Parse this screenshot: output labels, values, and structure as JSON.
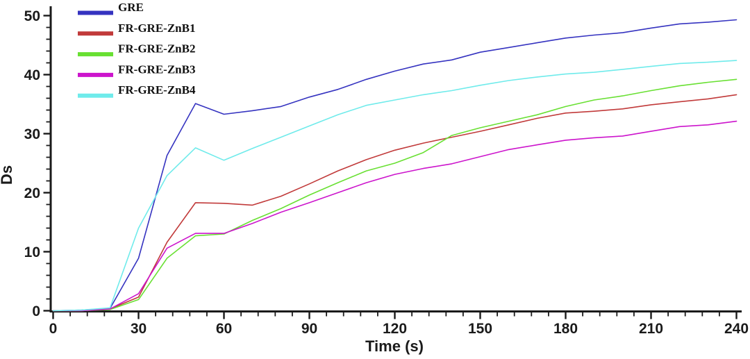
{
  "chart_data": {
    "type": "line",
    "title": "",
    "xlabel": "Time (s)",
    "ylabel": "Ds",
    "xlim": [
      0,
      240
    ],
    "ylim": [
      0,
      50
    ],
    "x_ticks": [
      0,
      30,
      60,
      90,
      120,
      150,
      180,
      210,
      240
    ],
    "y_ticks": [
      0,
      10,
      20,
      30,
      40,
      50
    ],
    "x_minor_step": 6,
    "y_minor_step": 2,
    "grid": false,
    "legend_position": "top-left",
    "axis_color": "#1a1a1a",
    "x": [
      0,
      10,
      20,
      30,
      40,
      50,
      60,
      70,
      80,
      90,
      100,
      110,
      120,
      130,
      140,
      150,
      160,
      170,
      180,
      190,
      200,
      210,
      220,
      230,
      240
    ],
    "series": [
      {
        "name": "GRE",
        "color": "#3533c0",
        "values": [
          0,
          0.1,
          0.4,
          8.9,
          26.3,
          35.1,
          33.3,
          33.9,
          34.6,
          36.2,
          37.5,
          39.2,
          40.6,
          41.8,
          42.5,
          43.8,
          44.6,
          45.4,
          46.2,
          46.7,
          47.1,
          47.9,
          48.6,
          48.9,
          49.3
        ]
      },
      {
        "name": "FR-GRE-ZnB1",
        "color": "#c13a3a",
        "values": [
          0,
          0,
          0.3,
          2.3,
          11.6,
          18.3,
          18.2,
          17.9,
          19.4,
          21.5,
          23.7,
          25.6,
          27.2,
          28.4,
          29.4,
          30.4,
          31.5,
          32.6,
          33.5,
          33.8,
          34.2,
          34.9,
          35.4,
          35.9,
          36.6
        ]
      },
      {
        "name": "FR-GRE-ZnB2",
        "color": "#68e032",
        "values": [
          0,
          0,
          0.2,
          1.9,
          8.9,
          12.7,
          13.0,
          15.3,
          17.3,
          19.6,
          21.7,
          23.7,
          25.0,
          26.8,
          29.7,
          31.0,
          32.1,
          33.2,
          34.6,
          35.7,
          36.4,
          37.3,
          38.1,
          38.7,
          39.2
        ]
      },
      {
        "name": "FR-GRE-ZnB3",
        "color": "#cc14cc",
        "values": [
          0,
          0,
          0.3,
          2.9,
          10.6,
          13.1,
          13.1,
          14.8,
          16.7,
          18.3,
          20.0,
          21.7,
          23.1,
          24.1,
          24.9,
          26.1,
          27.3,
          28.1,
          28.9,
          29.3,
          29.6,
          30.4,
          31.2,
          31.5,
          32.1
        ]
      },
      {
        "name": "FR-GRE-ZnB4",
        "color": "#6febeb",
        "values": [
          0,
          0.1,
          0.5,
          14.0,
          22.9,
          27.6,
          25.5,
          27.5,
          29.4,
          31.3,
          33.2,
          34.8,
          35.7,
          36.6,
          37.3,
          38.2,
          39.0,
          39.6,
          40.1,
          40.4,
          40.9,
          41.4,
          41.9,
          42.1,
          42.4
        ]
      }
    ]
  }
}
